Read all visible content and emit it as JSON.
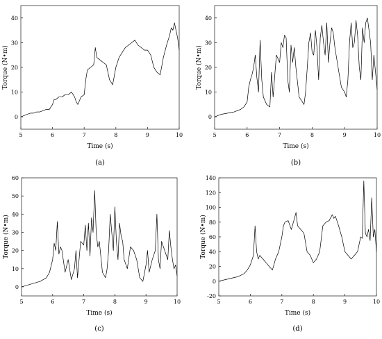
{
  "chart_data": [
    {
      "type": "line",
      "panel_label": "(a)",
      "xlabel": "Time (s)",
      "ylabel": "Torque (N•m)",
      "xlim": [
        5,
        10
      ],
      "ylim": [
        -5,
        45
      ],
      "xticks": [
        5,
        6,
        7,
        8,
        9,
        10
      ],
      "yticks": [
        0,
        10,
        20,
        30,
        40
      ],
      "grid": false,
      "series": [
        {
          "x": [
            5.0,
            5.1,
            5.2,
            5.3,
            5.4,
            5.5,
            5.6,
            5.7,
            5.8,
            5.9,
            6.0,
            6.05,
            6.1,
            6.2,
            6.3,
            6.4,
            6.5,
            6.6,
            6.7,
            6.75,
            6.8,
            6.9,
            7.0,
            7.05,
            7.1,
            7.2,
            7.3,
            7.35,
            7.4,
            7.5,
            7.6,
            7.7,
            7.8,
            7.9,
            8.0,
            8.1,
            8.2,
            8.3,
            8.4,
            8.5,
            8.6,
            8.7,
            8.8,
            8.9,
            9.0,
            9.1,
            9.2,
            9.3,
            9.4,
            9.5,
            9.6,
            9.7,
            9.75,
            9.8,
            9.85,
            9.9,
            9.95,
            10.0
          ],
          "y": [
            0,
            0.5,
            1,
            1.5,
            1.5,
            2,
            2,
            2.5,
            3,
            3,
            5,
            7,
            7,
            8,
            8,
            9,
            9,
            10,
            8,
            6,
            5,
            8,
            9,
            15,
            19,
            20,
            21,
            28,
            24,
            23,
            22,
            21,
            15,
            13,
            20,
            24,
            26,
            28,
            29,
            30,
            31,
            29,
            28,
            27,
            27,
            25,
            20,
            18,
            17,
            24,
            29,
            33,
            36,
            35,
            38,
            35,
            32,
            27
          ]
        }
      ]
    },
    {
      "type": "line",
      "panel_label": "(b)",
      "xlabel": "Time (s)",
      "ylabel": "Torque (N•m)",
      "xlim": [
        5,
        10
      ],
      "ylim": [
        -5,
        45
      ],
      "xticks": [
        5,
        6,
        7,
        8,
        9,
        10
      ],
      "yticks": [
        0,
        10,
        20,
        30,
        40
      ],
      "grid": false,
      "series": [
        {
          "x": [
            5.0,
            5.2,
            5.4,
            5.6,
            5.8,
            5.9,
            6.0,
            6.05,
            6.1,
            6.15,
            6.2,
            6.25,
            6.3,
            6.35,
            6.4,
            6.45,
            6.5,
            6.6,
            6.7,
            6.75,
            6.8,
            6.9,
            7.0,
            7.05,
            7.1,
            7.15,
            7.2,
            7.25,
            7.3,
            7.35,
            7.4,
            7.45,
            7.5,
            7.6,
            7.7,
            7.75,
            7.8,
            7.85,
            7.9,
            7.95,
            8.0,
            8.05,
            8.1,
            8.15,
            8.2,
            8.25,
            8.3,
            8.35,
            8.4,
            8.45,
            8.5,
            8.55,
            8.6,
            8.65,
            8.7,
            8.8,
            8.9,
            9.0,
            9.05,
            9.1,
            9.15,
            9.2,
            9.25,
            9.3,
            9.35,
            9.4,
            9.45,
            9.5,
            9.55,
            9.6,
            9.65,
            9.7,
            9.75,
            9.8,
            9.85,
            9.9,
            9.95,
            10.0
          ],
          "y": [
            0,
            1,
            1.5,
            2,
            3,
            4,
            6,
            12,
            15,
            17,
            20,
            25,
            16,
            10,
            31,
            15,
            8,
            5,
            4,
            18,
            8,
            25,
            22,
            30,
            28,
            33,
            32,
            15,
            10,
            29,
            22,
            28,
            20,
            8,
            6,
            5,
            10,
            20,
            30,
            34,
            26,
            25,
            35,
            28,
            15,
            32,
            37,
            30,
            25,
            38,
            22,
            30,
            36,
            34,
            28,
            20,
            12,
            10,
            8,
            15,
            30,
            38,
            28,
            30,
            39,
            33,
            20,
            15,
            36,
            30,
            38,
            40,
            35,
            30,
            15,
            25,
            18,
            11
          ]
        }
      ]
    },
    {
      "type": "line",
      "panel_label": "(c)",
      "xlabel": "Time (s)",
      "ylabel": "Torque (N•m)",
      "xlim": [
        5,
        10
      ],
      "ylim": [
        -5,
        60
      ],
      "xticks": [
        5,
        6,
        7,
        8,
        9,
        10
      ],
      "yticks": [
        0,
        10,
        20,
        30,
        40,
        50,
        60
      ],
      "grid": false,
      "series": [
        {
          "x": [
            5.0,
            5.2,
            5.4,
            5.6,
            5.8,
            5.9,
            6.0,
            6.05,
            6.1,
            6.15,
            6.2,
            6.25,
            6.3,
            6.4,
            6.5,
            6.6,
            6.7,
            6.75,
            6.8,
            6.9,
            7.0,
            7.05,
            7.1,
            7.15,
            7.2,
            7.25,
            7.3,
            7.35,
            7.4,
            7.45,
            7.5,
            7.6,
            7.7,
            7.75,
            7.8,
            7.85,
            7.9,
            7.95,
            8.0,
            8.05,
            8.1,
            8.15,
            8.2,
            8.25,
            8.3,
            8.4,
            8.5,
            8.6,
            8.7,
            8.8,
            8.9,
            9.0,
            9.05,
            9.1,
            9.2,
            9.3,
            9.35,
            9.4,
            9.45,
            9.5,
            9.6,
            9.7,
            9.75,
            9.8,
            9.85,
            9.9,
            9.95,
            10.0
          ],
          "y": [
            0,
            1,
            2,
            3,
            5,
            8,
            15,
            24,
            20,
            36,
            18,
            22,
            20,
            8,
            15,
            4,
            10,
            20,
            5,
            25,
            23,
            34,
            20,
            35,
            17,
            38,
            30,
            53,
            30,
            22,
            25,
            8,
            5,
            10,
            20,
            40,
            30,
            20,
            44,
            25,
            15,
            35,
            28,
            25,
            15,
            10,
            22,
            20,
            15,
            5,
            3,
            12,
            20,
            8,
            15,
            20,
            40,
            15,
            10,
            25,
            20,
            15,
            31,
            22,
            15,
            10,
            12,
            6
          ]
        }
      ]
    },
    {
      "type": "line",
      "panel_label": "(d)",
      "xlabel": "Time (s)",
      "ylabel": "Torque (N•m)",
      "xlim": [
        5,
        10
      ],
      "ylim": [
        -20,
        140
      ],
      "xticks": [
        5,
        6,
        7,
        8,
        9,
        10
      ],
      "yticks": [
        -20,
        0,
        20,
        40,
        60,
        80,
        100,
        120,
        140
      ],
      "grid": false,
      "series": [
        {
          "x": [
            5.0,
            5.2,
            5.4,
            5.6,
            5.8,
            5.9,
            6.0,
            6.1,
            6.15,
            6.2,
            6.25,
            6.3,
            6.4,
            6.5,
            6.6,
            6.7,
            6.8,
            6.9,
            7.0,
            7.05,
            7.1,
            7.2,
            7.3,
            7.4,
            7.45,
            7.5,
            7.6,
            7.7,
            7.8,
            7.9,
            8.0,
            8.1,
            8.2,
            8.3,
            8.4,
            8.5,
            8.6,
            8.65,
            8.7,
            8.8,
            8.9,
            9.0,
            9.1,
            9.2,
            9.3,
            9.4,
            9.5,
            9.55,
            9.6,
            9.65,
            9.7,
            9.75,
            9.8,
            9.85,
            9.9,
            9.95,
            10.0
          ],
          "y": [
            0,
            2,
            4,
            6,
            10,
            15,
            22,
            35,
            75,
            40,
            30,
            35,
            30,
            25,
            20,
            15,
            30,
            40,
            60,
            75,
            80,
            82,
            70,
            85,
            93,
            75,
            70,
            65,
            40,
            35,
            25,
            30,
            40,
            75,
            80,
            82,
            90,
            85,
            88,
            75,
            60,
            40,
            35,
            30,
            35,
            40,
            60,
            58,
            136,
            65,
            60,
            70,
            55,
            113,
            60,
            70,
            40
          ]
        }
      ]
    }
  ]
}
